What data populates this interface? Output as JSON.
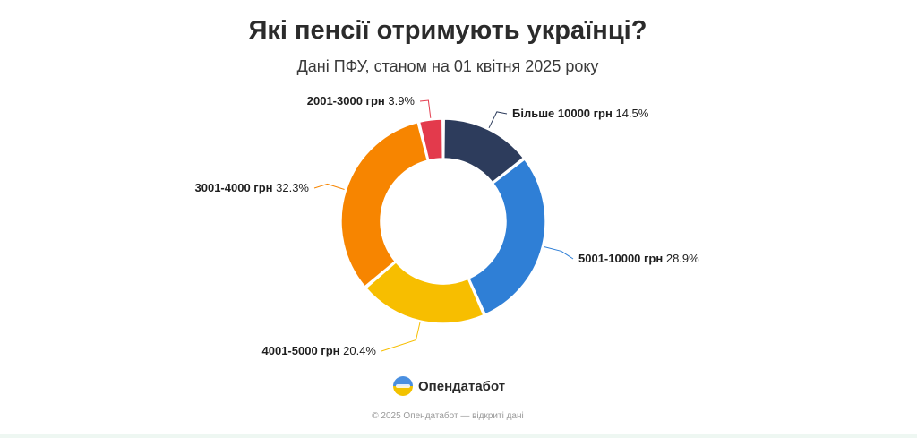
{
  "chart_data": {
    "type": "pie",
    "title": "Які пенсії отримують українці?",
    "subtitle": "Дані ПФУ, станом на 01 квітня 2025 року",
    "slices": [
      {
        "label": "Більше 10000 грн",
        "value": 14.5,
        "value_label": "14.5%",
        "color": "#2d3c5c"
      },
      {
        "label": "5001-10000 грн",
        "value": 28.9,
        "value_label": "28.9%",
        "color": "#2f7fd6"
      },
      {
        "label": "4001-5000 грн",
        "value": 20.4,
        "value_label": "20.4%",
        "color": "#f7be00"
      },
      {
        "label": "3001-4000 грн",
        "value": 32.3,
        "value_label": "32.3%",
        "color": "#f78500"
      },
      {
        "label": "2001-3000 грн",
        "value": 3.9,
        "value_label": "3.9%",
        "color": "#e33a4c"
      }
    ]
  },
  "brand": {
    "name": "Опендатабот",
    "logo_icon": "opendatabot-logo-icon"
  },
  "footer": "© 2025 Опендатабот — відкриті дані"
}
